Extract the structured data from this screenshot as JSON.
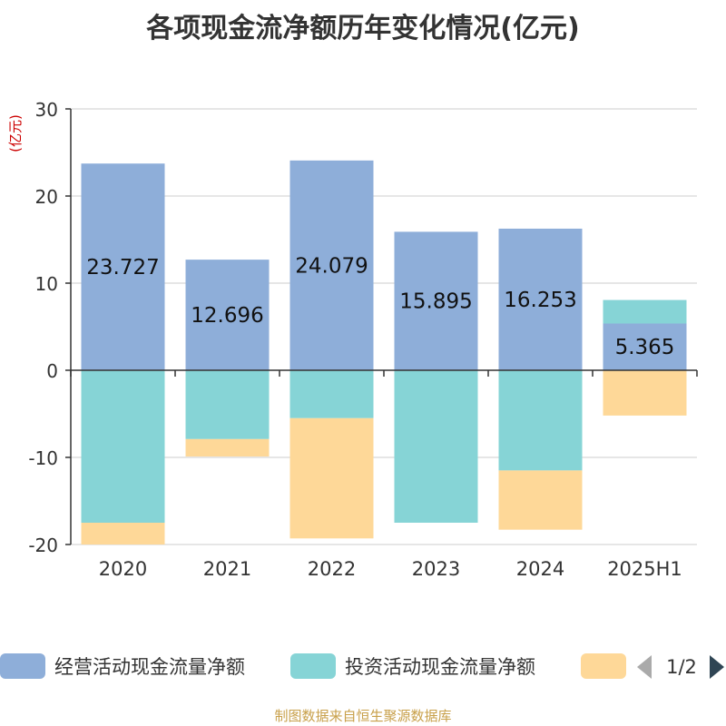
{
  "title": "各项现金流净额历年变化情况(亿元)",
  "footer": "制图数据来自恒生聚源数据库",
  "chart_data": {
    "type": "bar",
    "stacked": true,
    "unit_label": "(亿元)",
    "categories": [
      "2020",
      "2021",
      "2022",
      "2023",
      "2024",
      "2025H1"
    ],
    "ylim": [
      -20,
      30
    ],
    "yticks": [
      30,
      20,
      10,
      0,
      -10,
      -20
    ],
    "grid": true,
    "series": [
      {
        "name": "经营活动现金流量净额",
        "color": "#8eaed9",
        "values": [
          23.727,
          12.696,
          24.079,
          15.895,
          16.253,
          5.365
        ],
        "labels": [
          "23.727",
          "12.696",
          "24.079",
          "15.895",
          "16.253",
          "5.365"
        ]
      },
      {
        "name": "投资活动现金流量净额",
        "color": "#86d4d6",
        "values": [
          -17.5,
          -7.9,
          -5.5,
          -17.5,
          -11.5,
          2.7
        ]
      },
      {
        "name": "",
        "color": "#fed898",
        "values": [
          -2.5,
          -2.0,
          -13.8,
          0,
          -6.8,
          -5.2
        ]
      }
    ],
    "legend": {
      "position": "bottom",
      "page": "1/2"
    }
  }
}
